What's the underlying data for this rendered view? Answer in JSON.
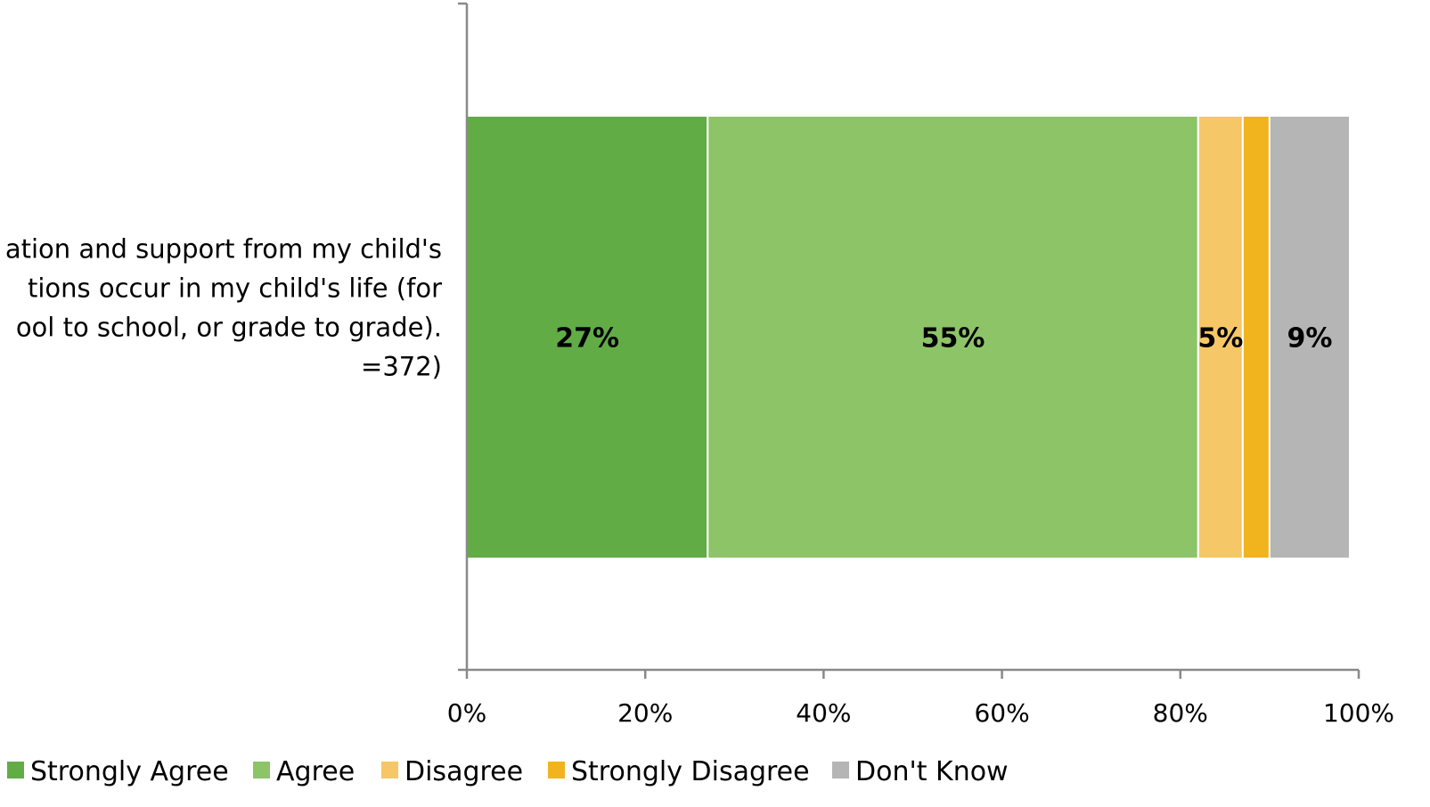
{
  "chart_data": {
    "type": "bar",
    "orientation": "horizontal",
    "stacked": true,
    "categories": [
      "ation and support from my child's\ntions occur in my child's life (for\nool to school, or grade to grade).\n=372)"
    ],
    "series": [
      {
        "name": "Strongly Agree",
        "values": [
          27
        ],
        "color": "#62AC46",
        "label": "27%"
      },
      {
        "name": "Agree",
        "values": [
          55
        ],
        "color": "#8DC468",
        "label": "55%"
      },
      {
        "name": "Disagree",
        "values": [
          5
        ],
        "color": "#F6C766",
        "label": "5%"
      },
      {
        "name": "Strongly Disagree",
        "values": [
          3
        ],
        "color": "#F1B41E",
        "label": ""
      },
      {
        "name": "Don't Know",
        "values": [
          9
        ],
        "color": "#B5B5B5",
        "label": "9%"
      }
    ],
    "xlim": [
      0,
      100
    ],
    "xticks": [
      "0%",
      "20%",
      "40%",
      "60%",
      "80%",
      "100%"
    ],
    "grid": false,
    "legend_position": "bottom"
  }
}
